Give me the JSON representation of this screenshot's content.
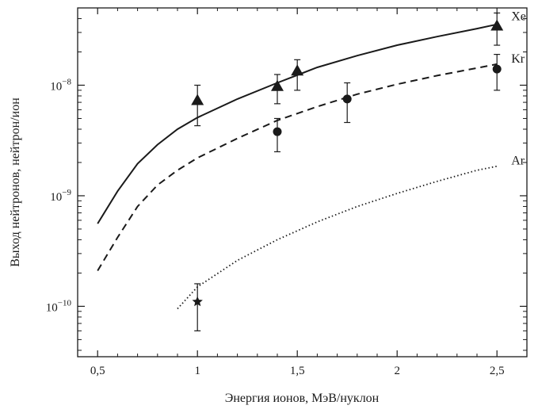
{
  "chart_data": {
    "type": "line",
    "title": "",
    "xlabel": "Энергия ионов, МэВ/нуклон",
    "ylabel": "Выход нейтронов, нейтрон/ион",
    "xlim": [
      0.4,
      2.65
    ],
    "ylim": [
      3.5e-11,
      5e-08
    ],
    "yscale": "log",
    "grid": false,
    "x_ticks": [
      {
        "value": 0.5,
        "label": "0,5"
      },
      {
        "value": 1.0,
        "label": "1"
      },
      {
        "value": 1.5,
        "label": "1,5"
      },
      {
        "value": 2.0,
        "label": "2"
      },
      {
        "value": 2.5,
        "label": "2,5"
      }
    ],
    "y_ticks": [
      {
        "value": 1e-10,
        "base": "10",
        "exp": "−10"
      },
      {
        "value": 1e-09,
        "base": "10",
        "exp": "−9"
      },
      {
        "value": 1e-08,
        "base": "10",
        "exp": "−8"
      }
    ],
    "series": [
      {
        "name": "Xe",
        "line_style": "solid",
        "marker": "triangle",
        "curve": {
          "x": [
            0.5,
            0.6,
            0.7,
            0.8,
            0.9,
            1.0,
            1.2,
            1.4,
            1.6,
            1.8,
            2.0,
            2.2,
            2.4,
            2.5
          ],
          "y": [
            5.6e-10,
            1.1e-09,
            1.95e-09,
            2.9e-09,
            4e-09,
            5.1e-09,
            7.5e-09,
            1.05e-08,
            1.45e-08,
            1.85e-08,
            2.3e-08,
            2.75e-08,
            3.25e-08,
            3.55e-08
          ]
        },
        "points": [
          {
            "x": 1.0,
            "y": 7.3e-09,
            "y_low": 4.3e-09,
            "y_high": 1e-08
          },
          {
            "x": 1.4,
            "y": 9.8e-09,
            "y_low": 6.8e-09,
            "y_high": 1.25e-08
          },
          {
            "x": 1.5,
            "y": 1.35e-08,
            "y_high": 1.7e-08,
            "y_low": 9e-09
          },
          {
            "x": 2.5,
            "y": 3.45e-08,
            "y_low": 2.3e-08,
            "y_high": 4.5e-08
          }
        ]
      },
      {
        "name": "Kr",
        "line_style": "dashed",
        "marker": "circle",
        "curve": {
          "x": [
            0.5,
            0.6,
            0.7,
            0.8,
            0.9,
            1.0,
            1.2,
            1.4,
            1.6,
            1.8,
            2.0,
            2.2,
            2.4,
            2.5
          ],
          "y": [
            2.1e-10,
            4.2e-10,
            8e-10,
            1.25e-09,
            1.7e-09,
            2.2e-09,
            3.3e-09,
            4.8e-09,
            6.4e-09,
            8.3e-09,
            1.02e-08,
            1.22e-08,
            1.43e-08,
            1.55e-08
          ]
        },
        "points": [
          {
            "x": 1.4,
            "y": 3.8e-09,
            "y_low": 2.5e-09,
            "y_high": 5e-09
          },
          {
            "x": 1.75,
            "y": 7.5e-09,
            "y_low": 4.6e-09,
            "y_high": 1.05e-08
          },
          {
            "x": 2.5,
            "y": 1.4e-08,
            "y_low": 9e-09,
            "y_high": 1.9e-08
          }
        ]
      },
      {
        "name": "Ar",
        "line_style": "dotted",
        "marker": "star",
        "curve": {
          "x": [
            0.9,
            1.0,
            1.2,
            1.4,
            1.6,
            1.8,
            2.0,
            2.2,
            2.4,
            2.5
          ],
          "y": [
            9.5e-11,
            1.5e-10,
            2.6e-10,
            4e-10,
            5.8e-10,
            8e-10,
            1.05e-09,
            1.35e-09,
            1.7e-09,
            1.85e-09
          ]
        },
        "points": [
          {
            "x": 1.0,
            "y": 1.1e-10,
            "y_low": 6e-11,
            "y_high": 1.6e-10
          }
        ]
      }
    ]
  }
}
